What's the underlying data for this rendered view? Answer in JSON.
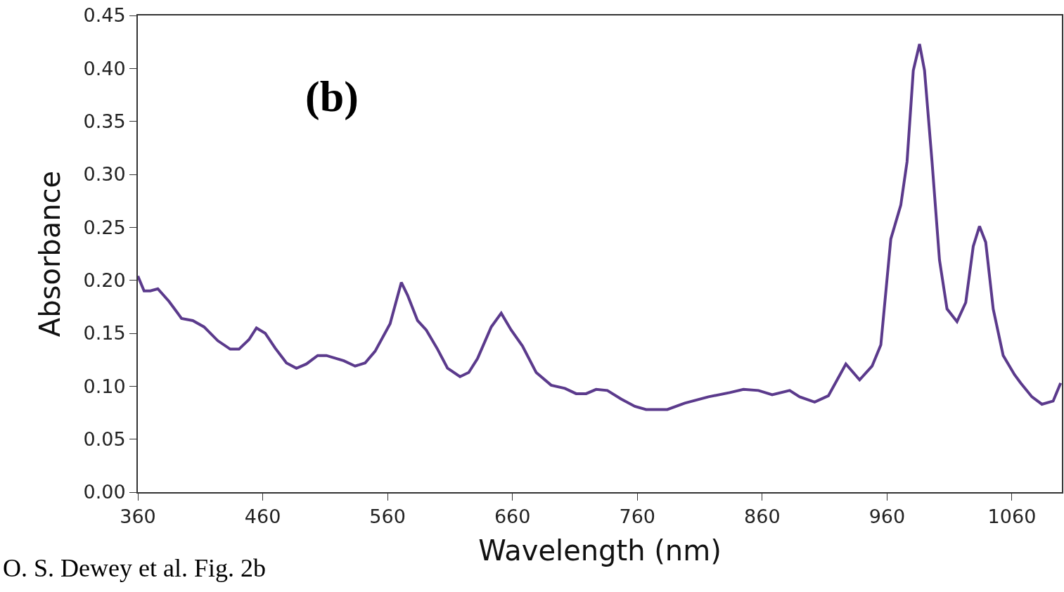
{
  "chart_data": {
    "type": "line",
    "xlabel": "Wavelength (nm)",
    "ylabel": "Absorbance",
    "annotations": [
      "(b)",
      "O. S. Dewey et al. Fig. 2b"
    ],
    "x": [
      360,
      365,
      370,
      376,
      385,
      395,
      404,
      413,
      424,
      434,
      441,
      449,
      455,
      462,
      470,
      479,
      487,
      495,
      504,
      511,
      525,
      534,
      542,
      550,
      562,
      571,
      576,
      584,
      591,
      600,
      608,
      618,
      625,
      632,
      643,
      651,
      659,
      668,
      679,
      691,
      702,
      711,
      719,
      727,
      736,
      747,
      758,
      767,
      784,
      798,
      817,
      834,
      845,
      857,
      868,
      882,
      890,
      902,
      913,
      927,
      938,
      948,
      955,
      963,
      971,
      976,
      981,
      986,
      990,
      996,
      1002,
      1008,
      1016,
      1023,
      1029,
      1034,
      1039,
      1045,
      1053,
      1062,
      1067,
      1076,
      1084,
      1093,
      1099
    ],
    "series": [
      {
        "color": "#5b3a8c",
        "values": [
          0.204,
          0.19,
          0.19,
          0.192,
          0.18,
          0.164,
          0.162,
          0.156,
          0.143,
          0.135,
          0.135,
          0.144,
          0.155,
          0.15,
          0.136,
          0.122,
          0.117,
          0.121,
          0.129,
          0.129,
          0.124,
          0.119,
          0.122,
          0.133,
          0.159,
          0.198,
          0.186,
          0.162,
          0.153,
          0.135,
          0.117,
          0.109,
          0.113,
          0.126,
          0.156,
          0.169,
          0.153,
          0.138,
          0.113,
          0.101,
          0.098,
          0.093,
          0.093,
          0.097,
          0.096,
          0.088,
          0.081,
          0.078,
          0.078,
          0.084,
          0.09,
          0.094,
          0.097,
          0.096,
          0.092,
          0.096,
          0.09,
          0.085,
          0.091,
          0.121,
          0.106,
          0.119,
          0.139,
          0.239,
          0.271,
          0.312,
          0.398,
          0.423,
          0.398,
          0.312,
          0.219,
          0.173,
          0.161,
          0.179,
          0.232,
          0.251,
          0.236,
          0.173,
          0.129,
          0.111,
          0.103,
          0.09,
          0.083,
          0.086,
          0.103
        ]
      }
    ],
    "xlim": [
      360,
      1100
    ],
    "xticks": [
      360,
      460,
      560,
      660,
      760,
      860,
      960,
      1060
    ],
    "ylim": [
      0,
      0.45
    ],
    "yticks": [
      {
        "value": 0,
        "label": "0.00"
      },
      {
        "value": 0.05,
        "label": "0.05"
      },
      {
        "value": 0.1,
        "label": "0.10"
      },
      {
        "value": 0.15,
        "label": "0.15"
      },
      {
        "value": 0.2,
        "label": "0.20"
      },
      {
        "value": 0.25,
        "label": "0.25"
      },
      {
        "value": 0.3,
        "label": "0.30"
      },
      {
        "value": 0.35,
        "label": "0.35"
      },
      {
        "value": 0.4,
        "label": "0.40"
      },
      {
        "value": 0.45,
        "label": "0.45"
      }
    ],
    "grid": false,
    "marker": "none",
    "line_style": "solid"
  }
}
